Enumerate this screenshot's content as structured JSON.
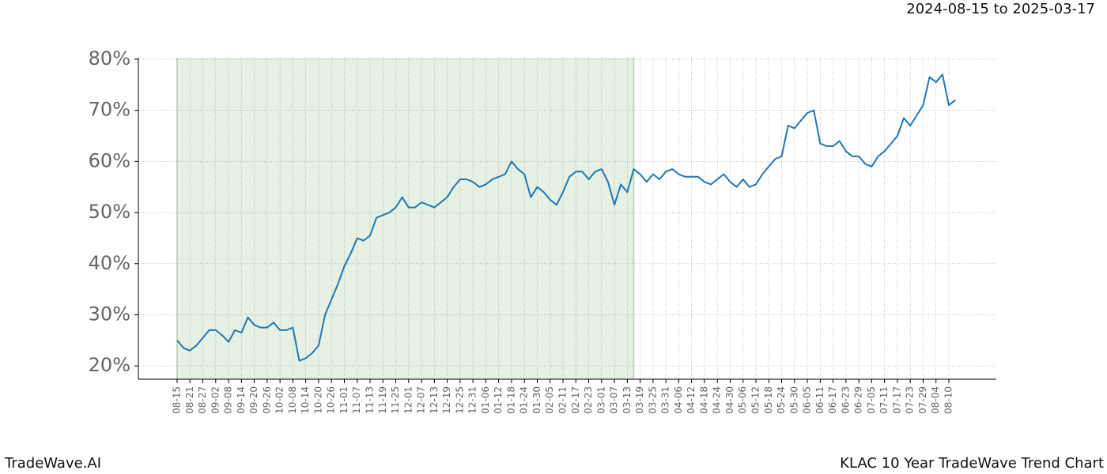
{
  "chart_data": {
    "type": "line",
    "date_range": "2024-08-15 to 2025-03-17",
    "footer_left": "TradeWave.AI",
    "footer_right": "KLAC 10 Year TradeWave Trend Chart",
    "categories": [
      "08-15",
      null,
      "08-21",
      null,
      "08-27",
      null,
      "09-02",
      null,
      "09-08",
      null,
      "09-14",
      null,
      "09-20",
      null,
      "09-26",
      null,
      "10-02",
      null,
      "10-08",
      null,
      "10-14",
      null,
      "10-20",
      null,
      "10-26",
      null,
      "11-01",
      null,
      "11-07",
      null,
      "11-13",
      null,
      "11-19",
      null,
      "11-25",
      null,
      "12-01",
      null,
      "12-07",
      null,
      "12-13",
      null,
      "12-19",
      null,
      "12-25",
      null,
      "12-31",
      null,
      "01-06",
      null,
      "01-12",
      null,
      "01-18",
      null,
      "01-24",
      null,
      "01-30",
      null,
      "02-05",
      null,
      "02-11",
      null,
      "02-17",
      null,
      "02-23",
      null,
      "03-01",
      null,
      "03-07",
      null,
      "03-13",
      null,
      "03-19",
      null,
      "03-25",
      null,
      "03-31",
      null,
      "04-06",
      null,
      "04-12",
      null,
      "04-18",
      null,
      "04-24",
      null,
      "04-30",
      null,
      "05-06",
      null,
      "05-12",
      null,
      "05-18",
      null,
      "05-24",
      null,
      "05-30",
      null,
      "06-05",
      null,
      "06-11",
      null,
      "06-17",
      null,
      "06-23",
      null,
      "06-29",
      null,
      "07-05",
      null,
      "07-11",
      null,
      "07-17",
      null,
      "07-23",
      null,
      "07-29",
      null,
      "08-04",
      null,
      "08-10",
      null
    ],
    "values": [
      25,
      23.5,
      23,
      24,
      25.5,
      27,
      27,
      26,
      24.7,
      27,
      26.5,
      29.5,
      28,
      27.5,
      27.5,
      28.5,
      27,
      27,
      27.5,
      21,
      21.5,
      22.5,
      24,
      30,
      33,
      36,
      39.5,
      42,
      45,
      44.5,
      45.5,
      49,
      49.5,
      50,
      51,
      53,
      51,
      51,
      52,
      51.5,
      51,
      52,
      53,
      55,
      56.5,
      56.5,
      56,
      55,
      55.5,
      56.5,
      57,
      57.5,
      60,
      58.5,
      57.5,
      53,
      55,
      54,
      52.5,
      51.5,
      54,
      57,
      58,
      58,
      56.5,
      58,
      58.5,
      56,
      51.5,
      55.5,
      54,
      58.5,
      57.5,
      56,
      57.5,
      56.5,
      58,
      58.5,
      57.5,
      57,
      57,
      57,
      56,
      55.5,
      56.5,
      57.5,
      56,
      55,
      56.5,
      55,
      55.5,
      57.5,
      59,
      60.5,
      61,
      67,
      66.5,
      68,
      69.5,
      70,
      63.5,
      63,
      63,
      64,
      62,
      61,
      61,
      59.5,
      59,
      61,
      62,
      63.5,
      65,
      68.5,
      67,
      69,
      71,
      76.5,
      75.5,
      77,
      71,
      72
    ],
    "color": "#1f77b4",
    "highlight": [
      0,
      71
    ],
    "highlight_color": "#e6f0e3",
    "ylim": [
      17.4,
      80.3
    ],
    "yticks": [
      {
        "value": 20,
        "label": "20%"
      },
      {
        "value": 30,
        "label": "30%"
      },
      {
        "value": 40,
        "label": "40%"
      },
      {
        "value": 50,
        "label": "50%"
      },
      {
        "value": 60,
        "label": "60%"
      },
      {
        "value": 70,
        "label": "70%"
      },
      {
        "value": 80,
        "label": "80%"
      }
    ],
    "grid": true
  }
}
